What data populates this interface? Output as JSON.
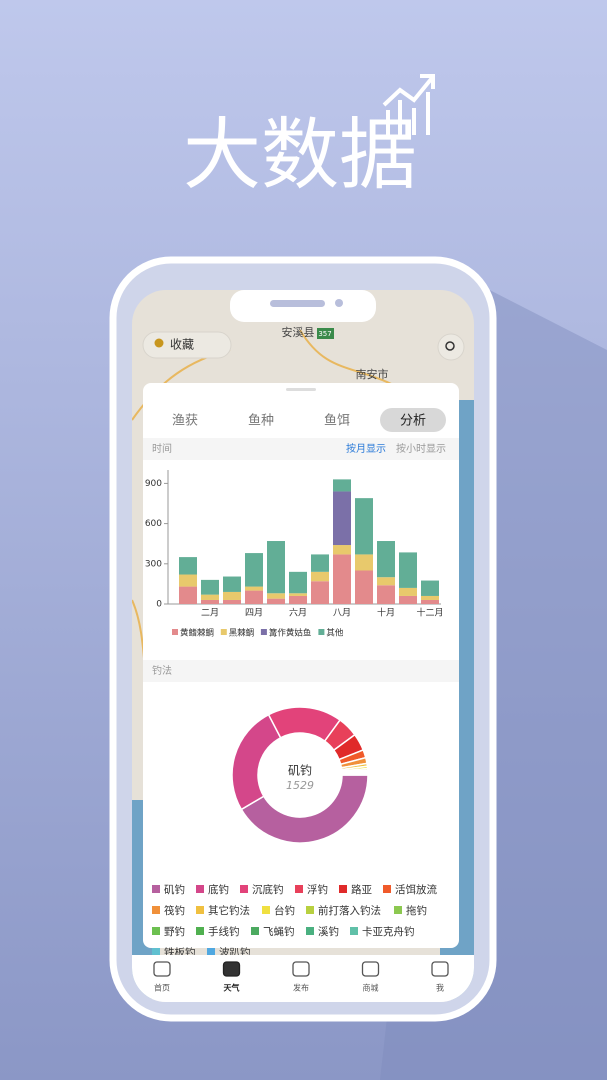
{
  "header": {
    "title": "大数据"
  },
  "map": {
    "favorite": "收藏",
    "labels": [
      "安溪县",
      "南安市"
    ],
    "road": "357"
  },
  "tabs": [
    "渔获",
    "鱼种",
    "鱼饵",
    "分析"
  ],
  "active_tab": 3,
  "time_section": {
    "label": "时间",
    "by_month": "按月显示",
    "by_hour": "按小时显示"
  },
  "method_section": {
    "label": "钓法"
  },
  "chart_data": [
    {
      "type": "stacked_bar",
      "categories": [
        null,
        "二月",
        null,
        "四月",
        null,
        "六月",
        null,
        "八月",
        null,
        "十月",
        null,
        "十二月"
      ],
      "ylim": [
        0,
        1000
      ],
      "yticks": [
        0,
        300,
        600,
        900
      ],
      "series": [
        {
          "name": "黄鳍棘鲷",
          "color": "#e38a8c",
          "values": [
            130,
            30,
            30,
            100,
            40,
            60,
            170,
            370,
            250,
            140,
            60,
            30
          ]
        },
        {
          "name": "黑棘鲷",
          "color": "#e8c96c",
          "values": [
            90,
            40,
            60,
            30,
            40,
            20,
            70,
            70,
            120,
            60,
            60,
            30
          ]
        },
        {
          "name": "篝作黄姑鱼",
          "color": "#7b70a8",
          "values": [
            0,
            0,
            0,
            0,
            0,
            0,
            0,
            400,
            0,
            0,
            0,
            0
          ]
        },
        {
          "name": "其他",
          "color": "#62ae96",
          "values": [
            130,
            110,
            115,
            250,
            390,
            160,
            130,
            90,
            420,
            270,
            265,
            115
          ]
        }
      ]
    },
    {
      "type": "donut",
      "categories": [
        "矶钓",
        "底钓",
        "沉底钓",
        "浮钓",
        "路亚",
        "活饵放流",
        "筏钓",
        "其它钓法",
        "台钓",
        "前打落入钓法",
        "拖钓",
        "野钓",
        "手线钓",
        "飞蝇钓",
        "溪钓",
        "卡亚克舟钓",
        "铁板钓",
        "波趴钓"
      ],
      "values": [
        1529,
        950,
        650,
        180,
        150,
        70,
        50,
        25,
        20,
        15,
        10,
        8,
        6,
        5,
        4,
        3,
        3,
        2
      ],
      "colors": [
        "#b6609f",
        "#d4478a",
        "#e2437a",
        "#e8405a",
        "#e02a2a",
        "#f05a2a",
        "#f0903a",
        "#f0c040",
        "#f0e040",
        "#b8d040",
        "#8cc850",
        "#6cc050",
        "#50b050",
        "#4caa60",
        "#4ab080",
        "#60c0a8",
        "#60c0d0",
        "#50a8e0"
      ]
    }
  ],
  "nav": [
    "首页",
    "天气",
    "发布",
    "商城",
    "我"
  ],
  "active_nav": 1
}
